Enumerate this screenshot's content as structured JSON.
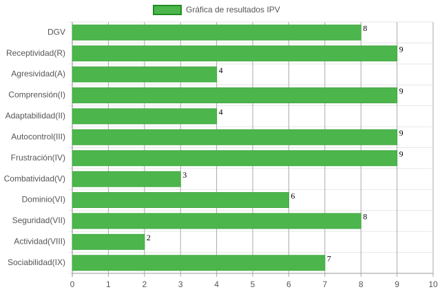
{
  "chart_data": {
    "type": "bar",
    "horizontal": true,
    "categories": [
      "DGV",
      "Receptividad(R)",
      "Agresividad(A)",
      "Comprensión(I)",
      "Adaptabilidad(II)",
      "Autocontrol(III)",
      "Frustración(IV)",
      "Combatividad(V)",
      "Dominio(VI)",
      "Seguridad(VII)",
      "Actividad(VIII)",
      "Sociabilidad(IX)"
    ],
    "series": [
      {
        "name": "Gráfica de resultados IPV",
        "color": "#4cb64c",
        "border": "#1e8c1e",
        "values": [
          8,
          9,
          4,
          9,
          4,
          9,
          9,
          3,
          6,
          8,
          2,
          7
        ]
      }
    ],
    "xlim": [
      0,
      10
    ],
    "xticks": [
      0,
      1,
      2,
      3,
      4,
      5,
      6,
      7,
      8,
      9,
      10
    ],
    "grid": true,
    "legend": "top"
  }
}
